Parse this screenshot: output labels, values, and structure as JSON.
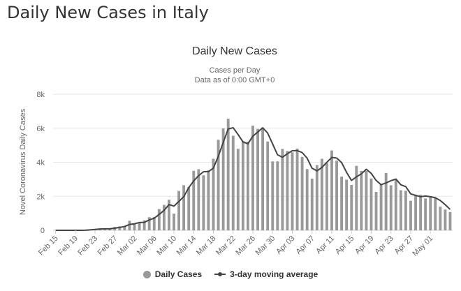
{
  "page": {
    "title": "Daily New Cases in Italy"
  },
  "chart_data": {
    "type": "bar",
    "title": "Daily New Cases",
    "subtitle": [
      "Cases per Day",
      "Data as of 0:00 GMT+0"
    ],
    "ylabel": "Novel Coronavirus Daily Cases",
    "xlabel": "",
    "ylim": [
      0,
      8000
    ],
    "y_ticks": [
      0,
      2000,
      4000,
      6000,
      8000
    ],
    "y_tick_labels": [
      "0",
      "2k",
      "4k",
      "6k",
      "8k"
    ],
    "grid": "horizontal",
    "legend_position": "bottom",
    "colors": {
      "bars": "#999999",
      "line": "#444444",
      "grid": "#e6e6e6"
    },
    "categories": [
      "Feb 15",
      "Feb 16",
      "Feb 17",
      "Feb 18",
      "Feb 19",
      "Feb 20",
      "Feb 21",
      "Feb 22",
      "Feb 23",
      "Feb 24",
      "Feb 25",
      "Feb 26",
      "Feb 27",
      "Feb 28",
      "Feb 29",
      "Mar 01",
      "Mar 02",
      "Mar 03",
      "Mar 04",
      "Mar 05",
      "Mar 06",
      "Mar 07",
      "Mar 08",
      "Mar 09",
      "Mar 10",
      "Mar 11",
      "Mar 12",
      "Mar 13",
      "Mar 14",
      "Mar 15",
      "Mar 16",
      "Mar 17",
      "Mar 18",
      "Mar 19",
      "Mar 20",
      "Mar 21",
      "Mar 22",
      "Mar 23",
      "Mar 24",
      "Mar 25",
      "Mar 26",
      "Mar 27",
      "Mar 28",
      "Mar 29",
      "Mar 30",
      "Mar 31",
      "Apr 01",
      "Apr 02",
      "Apr 03",
      "Apr 04",
      "Apr 05",
      "Apr 06",
      "Apr 07",
      "Apr 08",
      "Apr 09",
      "Apr 10",
      "Apr 11",
      "Apr 12",
      "Apr 13",
      "Apr 14",
      "Apr 15",
      "Apr 16",
      "Apr 17",
      "Apr 18",
      "Apr 19",
      "Apr 20",
      "Apr 21",
      "Apr 22",
      "Apr 23",
      "Apr 24",
      "Apr 25",
      "Apr 26",
      "Apr 27",
      "Apr 28",
      "Apr 29",
      "Apr 30",
      "May 01",
      "May 02",
      "May 03",
      "May 04",
      "May 05"
    ],
    "tick_labels": [
      "Feb 15",
      "Feb 19",
      "Feb 23",
      "Feb 27",
      "Mar 02",
      "Mar 06",
      "Mar 10",
      "Mar 14",
      "Mar 18",
      "Mar 22",
      "Mar 26",
      "Mar 30",
      "Apr 03",
      "Apr 07",
      "Apr 11",
      "Apr 15",
      "Apr 19",
      "Apr 23",
      "Apr 27",
      "May 01"
    ],
    "series": [
      {
        "name": "Daily Cases",
        "type": "bar",
        "values": [
          0,
          0,
          0,
          0,
          0,
          0,
          14,
          62,
          78,
          94,
          95,
          75,
          200,
          230,
          240,
          560,
          347,
          466,
          587,
          769,
          778,
          1247,
          1492,
          1797,
          977,
          2313,
          2651,
          2547,
          3497,
          3590,
          3233,
          3526,
          4207,
          5322,
          5986,
          6557,
          5560,
          4789,
          5249,
          5210,
          6153,
          5959,
          5974,
          5217,
          4050,
          4053,
          4782,
          4668,
          4585,
          4805,
          4316,
          3599,
          3039,
          3836,
          4204,
          3951,
          4694,
          4092,
          3153,
          2972,
          2667,
          3786,
          3493,
          3491,
          3047,
          2256,
          2729,
          3370,
          2646,
          3021,
          2357,
          2324,
          1739,
          2091,
          2086,
          1872,
          1965,
          1900,
          1389,
          1221,
          1075
        ]
      },
      {
        "name": "3-day moving average",
        "type": "line",
        "values": [
          0,
          0,
          0,
          0,
          0,
          0,
          5,
          25,
          51,
          78,
          89,
          88,
          123,
          168,
          223,
          343,
          379,
          458,
          467,
          607,
          711,
          931,
          1172,
          1512,
          1422,
          1696,
          1980,
          2504,
          2898,
          3211,
          3440,
          3450,
          3655,
          4352,
          5172,
          5955,
          6034,
          5635,
          5199,
          5083,
          5537,
          5774,
          6029,
          5717,
          5080,
          4440,
          4295,
          4501,
          4678,
          4686,
          4569,
          4240,
          3651,
          3491,
          3693,
          3997,
          4283,
          4246,
          3980,
          3406,
          2931,
          3142,
          3315,
          3590,
          3344,
          2931,
          2677,
          2785,
          2915,
          3012,
          2675,
          2567,
          2140,
          2051,
          1972,
          2016,
          1974,
          1912,
          1751,
          1503,
          1228
        ]
      }
    ]
  },
  "legend": {
    "bar_label": "Daily Cases",
    "line_label": "3-day moving average"
  }
}
